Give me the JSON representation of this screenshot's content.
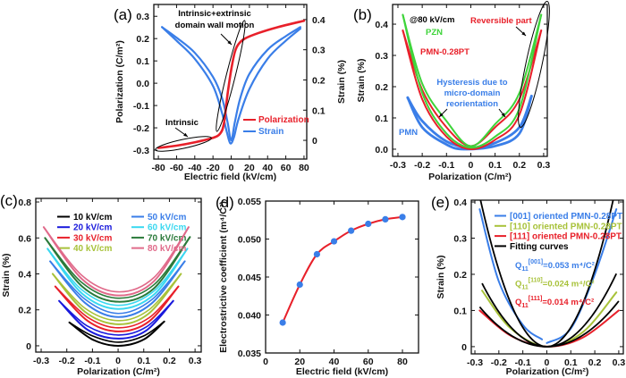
{
  "chart_data": [
    {
      "panel": "(a)",
      "type": "line",
      "xlabel": "Electric field (kV/cm)",
      "ylabel": "Polarization (C/m²)",
      "y2label": "Strain (%)",
      "xlim": [
        -85,
        83
      ],
      "ylim": [
        -0.34,
        0.353
      ],
      "y2lim": [
        -0.062,
        0.45
      ],
      "xticks": [
        "-80",
        "-60",
        "-40",
        "-20",
        "0",
        "20",
        "40",
        "60",
        "80"
      ],
      "yticks": [
        "-0.3",
        "-0.2",
        "-0.1",
        "0.0",
        "0.1",
        "0.2",
        "0.3"
      ],
      "y2ticks": [
        "0",
        "0.1",
        "0.2",
        "0.3",
        "0.4"
      ],
      "series": [
        {
          "name": "Polarization",
          "color": "#e8202a",
          "axis": "left",
          "branches": [
            [
              [
                -80,
                -0.29
              ],
              [
                -60,
                -0.28
              ],
              [
                -40,
                -0.265
              ],
              [
                -20,
                -0.245
              ],
              [
                -12,
                -0.225
              ],
              [
                -8,
                -0.18
              ],
              [
                -4,
                -0.05
              ],
              [
                0,
                0.06
              ],
              [
                4,
                0.14
              ],
              [
                8,
                0.175
              ],
              [
                15,
                0.2
              ],
              [
                30,
                0.225
              ],
              [
                50,
                0.25
              ],
              [
                80,
                0.28
              ]
            ]
          ]
        },
        {
          "name": "Strain",
          "color": "#3a7ee8",
          "axis": "right",
          "branches": [
            [
              [
                -76,
                0.375
              ],
              [
                -60,
                0.34
              ],
              [
                -40,
                0.29
              ],
              [
                -20,
                0.21
              ],
              [
                -10,
                0.14
              ],
              [
                -4,
                0.06
              ],
              [
                0,
                0.0
              ],
              [
                4,
                0.06
              ],
              [
                10,
                0.14
              ],
              [
                20,
                0.22
              ],
              [
                40,
                0.3
              ],
              [
                60,
                0.345
              ],
              [
                76,
                0.375
              ]
            ],
            [
              [
                -76,
                0.375
              ],
              [
                -60,
                0.33
              ],
              [
                -40,
                0.27
              ],
              [
                -20,
                0.18
              ],
              [
                -10,
                0.09
              ],
              [
                -5,
                0.03
              ],
              [
                -1,
                -0.01
              ],
              [
                3,
                0.01
              ],
              [
                8,
                0.07
              ],
              [
                20,
                0.17
              ],
              [
                40,
                0.27
              ],
              [
                60,
                0.33
              ],
              [
                76,
                0.37
              ]
            ]
          ]
        }
      ],
      "annotations": [
        "Intrinsic+extrinsic",
        "domain wall motion",
        "Intrinsic"
      ],
      "legend": "lower-right"
    },
    {
      "panel": "(b)",
      "type": "line",
      "xlabel": "Polarization (C/m²)",
      "ylabel": "Strain (%)",
      "xlim": [
        -0.322,
        0.315
      ],
      "ylim": [
        -0.023,
        0.463
      ],
      "xticks": [
        "-0.3",
        "-0.2",
        "-0.1",
        "0",
        "0.1",
        "0.2",
        "0.3"
      ],
      "yticks": [
        "0.0",
        "0.1",
        "0.2",
        "0.3",
        "0.4"
      ],
      "series": [
        {
          "name": "PMN",
          "color": "#3a7ee8",
          "branches": [
            [
              [
                -0.26,
                0.165
              ],
              [
                -0.2,
                0.09
              ],
              [
                -0.1,
                0.025
              ],
              [
                0,
                0.005
              ],
              [
                0.1,
                0.02
              ],
              [
                0.2,
                0.07
              ],
              [
                0.25,
                0.17
              ]
            ],
            [
              [
                -0.26,
                0.165
              ],
              [
                -0.2,
                0.07
              ],
              [
                -0.1,
                0.015
              ],
              [
                -0.03,
                0.0
              ],
              [
                0.1,
                0.01
              ],
              [
                0.2,
                0.05
              ],
              [
                0.25,
                0.17
              ]
            ]
          ]
        },
        {
          "name": "PMN-0.28PT",
          "color": "#e8202a",
          "branches": [
            [
              [
                -0.28,
                0.38
              ],
              [
                -0.2,
                0.19
              ],
              [
                -0.1,
                0.07
              ],
              [
                0,
                0.01
              ],
              [
                0.1,
                0.07
              ],
              [
                0.2,
                0.16
              ],
              [
                0.29,
                0.38
              ]
            ],
            [
              [
                -0.28,
                0.38
              ],
              [
                -0.2,
                0.16
              ],
              [
                -0.1,
                0.04
              ],
              [
                0,
                0.0
              ],
              [
                0.1,
                0.03
              ],
              [
                0.2,
                0.11
              ],
              [
                0.29,
                0.38
              ]
            ]
          ]
        },
        {
          "name": "PZN",
          "color": "#3ed43a",
          "branches": [
            [
              [
                -0.28,
                0.43
              ],
              [
                -0.2,
                0.21
              ],
              [
                -0.1,
                0.09
              ],
              [
                0,
                0.01
              ],
              [
                0.1,
                0.08
              ],
              [
                0.2,
                0.18
              ],
              [
                0.29,
                0.43
              ]
            ],
            [
              [
                -0.28,
                0.43
              ],
              [
                -0.2,
                0.18
              ],
              [
                -0.1,
                0.05
              ],
              [
                0,
                0.005
              ],
              [
                0.1,
                0.04
              ],
              [
                0.2,
                0.13
              ],
              [
                0.29,
                0.43
              ]
            ]
          ]
        }
      ],
      "annotations": {
        "field": "@80 kV/cm",
        "reversible": "Reversible part",
        "hysteresis": [
          "Hysteresis due to",
          "micro-domain",
          "reorientation"
        ]
      }
    },
    {
      "panel": "(c)",
      "type": "line",
      "xlabel": "Polarization (C/m²)",
      "ylabel": "Strain (%)",
      "xlim": [
        -0.321,
        0.324
      ],
      "ylim": [
        -0.035,
        0.82
      ],
      "xticks": [
        "-0.3",
        "-0.2",
        "-0.1",
        "0",
        "0.1",
        "0.2",
        "0.3"
      ],
      "yticks": [
        "0",
        "0.2",
        "0.4",
        "0.6",
        "0.8"
      ],
      "legend": "top",
      "series": [
        {
          "name": "10 kV/cm",
          "color": "#000000",
          "points": [
            [
              -0.19,
              0.13
            ],
            [
              -0.1,
              0.035
            ],
            [
              0,
              0
            ],
            [
              0.1,
              0.035
            ],
            [
              0.18,
              0.135
            ]
          ]
        },
        {
          "name": "20 kV/cm",
          "color": "#1a1adc",
          "points": [
            [
              -0.23,
              0.25
            ],
            [
              -0.12,
              0.09
            ],
            [
              0,
              0.04
            ],
            [
              0.11,
              0.085
            ],
            [
              0.215,
              0.25
            ]
          ]
        },
        {
          "name": "30 kV/cm",
          "color": "#e8202a",
          "points": [
            [
              -0.245,
              0.33
            ],
            [
              -0.12,
              0.14
            ],
            [
              0,
              0.08
            ],
            [
              0.12,
              0.135
            ],
            [
              0.235,
              0.33
            ]
          ]
        },
        {
          "name": "40 kV/cm",
          "color": "#a8c23a",
          "points": [
            [
              -0.255,
              0.4
            ],
            [
              -0.13,
              0.19
            ],
            [
              0,
              0.12
            ],
            [
              0.12,
              0.18
            ],
            [
              0.245,
              0.4
            ]
          ]
        },
        {
          "name": "50 kV/cm",
          "color": "#3a7ee8",
          "points": [
            [
              -0.265,
              0.47
            ],
            [
              -0.13,
              0.24
            ],
            [
              0,
              0.16
            ],
            [
              0.13,
              0.235
            ],
            [
              0.26,
              0.47
            ]
          ]
        },
        {
          "name": "60 kV/cm",
          "color": "#3ad8f0",
          "points": [
            [
              -0.275,
              0.54
            ],
            [
              -0.14,
              0.29
            ],
            [
              0,
              0.205
            ],
            [
              0.14,
              0.285
            ],
            [
              0.27,
              0.54
            ]
          ]
        },
        {
          "name": "70 kV/cm",
          "color": "#2a7a3a",
          "points": [
            [
              -0.285,
              0.6
            ],
            [
              -0.14,
              0.33
            ],
            [
              0,
              0.245
            ],
            [
              0.14,
              0.32
            ],
            [
              0.28,
              0.605
            ]
          ]
        },
        {
          "name": "80 kV/cm",
          "color": "#e06a8a",
          "points": [
            [
              -0.29,
              0.66
            ],
            [
              -0.14,
              0.37
            ],
            [
              0,
              0.28
            ],
            [
              0.14,
              0.36
            ],
            [
              0.275,
              0.66
            ]
          ]
        }
      ]
    },
    {
      "panel": "(d)",
      "type": "scatter",
      "xlabel": "Electric field (kV/cm)",
      "ylabel": "Electrostrictive coefficient (m⁴/C²)",
      "xlim": [
        0,
        89.4
      ],
      "ylim": [
        0.035,
        0.055
      ],
      "xticks": [
        "0",
        "20",
        "40",
        "60",
        "80"
      ],
      "yticks": [
        "0.035",
        "0.040",
        "0.045",
        "0.050",
        "0.055"
      ],
      "x": [
        10,
        20,
        30,
        40,
        50,
        60,
        70,
        80
      ],
      "y": [
        0.039,
        0.044,
        0.048,
        0.0497,
        0.0511,
        0.052,
        0.0526,
        0.0529
      ],
      "marker_color": "#3a7ee8",
      "fit_color": "#e8202a"
    },
    {
      "panel": "(e)",
      "type": "line",
      "xlabel": "Polarization (C/m²)",
      "ylabel": "Strain (%)",
      "xlim": [
        -0.315,
        0.319
      ],
      "ylim": [
        -0.02,
        0.405
      ],
      "xticks": [
        "-0.3",
        "-0.2",
        "-0.1",
        "0",
        "0.1",
        "0.2",
        "0.3"
      ],
      "yticks": [
        "0",
        "0.1",
        "0.2",
        "0.3",
        "0.4"
      ],
      "legend": "top-right",
      "series": [
        {
          "name": "[001] oriented PMN-0.28PT",
          "color": "#3a7ee8",
          "branches": [
            [
              [
                -0.28,
                0.38
              ],
              [
                -0.2,
                0.18
              ],
              [
                -0.1,
                0.06
              ],
              [
                -0.02,
                0.02
              ]
            ],
            [
              [
                0,
                0.01
              ],
              [
                0.1,
                0.05
              ],
              [
                0.2,
                0.2
              ],
              [
                0.29,
                0.38
              ]
            ]
          ],
          "fit": {
            "sym": "Q",
            "sub": "11",
            "orient": "[001]",
            "text": "=0.053 m⁴/C²",
            "Q": 0.053,
            "range": [
              -0.28,
              0.29
            ]
          }
        },
        {
          "name": "[110] oriented PMN-0.28PT",
          "color": "#a8c23a",
          "branches": [
            [
              [
                -0.27,
                0.155
              ],
              [
                -0.15,
                0.05
              ],
              [
                0,
                0
              ],
              [
                0.15,
                0.04
              ],
              [
                0.29,
                0.15
              ]
            ]
          ],
          "fit": {
            "sym": "Q",
            "sub": "11",
            "orient": "[110]",
            "text": "=0.024 m⁴/C²",
            "Q": 0.024,
            "range": [
              -0.27,
              0.29
            ]
          }
        },
        {
          "name": "[111] oriented PMN-0.28PT",
          "color": "#e8202a",
          "branches": [
            [
              [
                -0.28,
                0.1
              ],
              [
                -0.15,
                0.03
              ],
              [
                0,
                0
              ],
              [
                0.15,
                0.025
              ],
              [
                0.3,
                0.1
              ]
            ]
          ],
          "fit": {
            "sym": "Q",
            "sub": "11",
            "orient": "[111]",
            "text": "=0.014 m⁴/C²",
            "Q": 0.014,
            "range": [
              -0.28,
              0.3
            ]
          }
        },
        {
          "name": "Fitting curves",
          "color": "#000000"
        }
      ]
    }
  ]
}
